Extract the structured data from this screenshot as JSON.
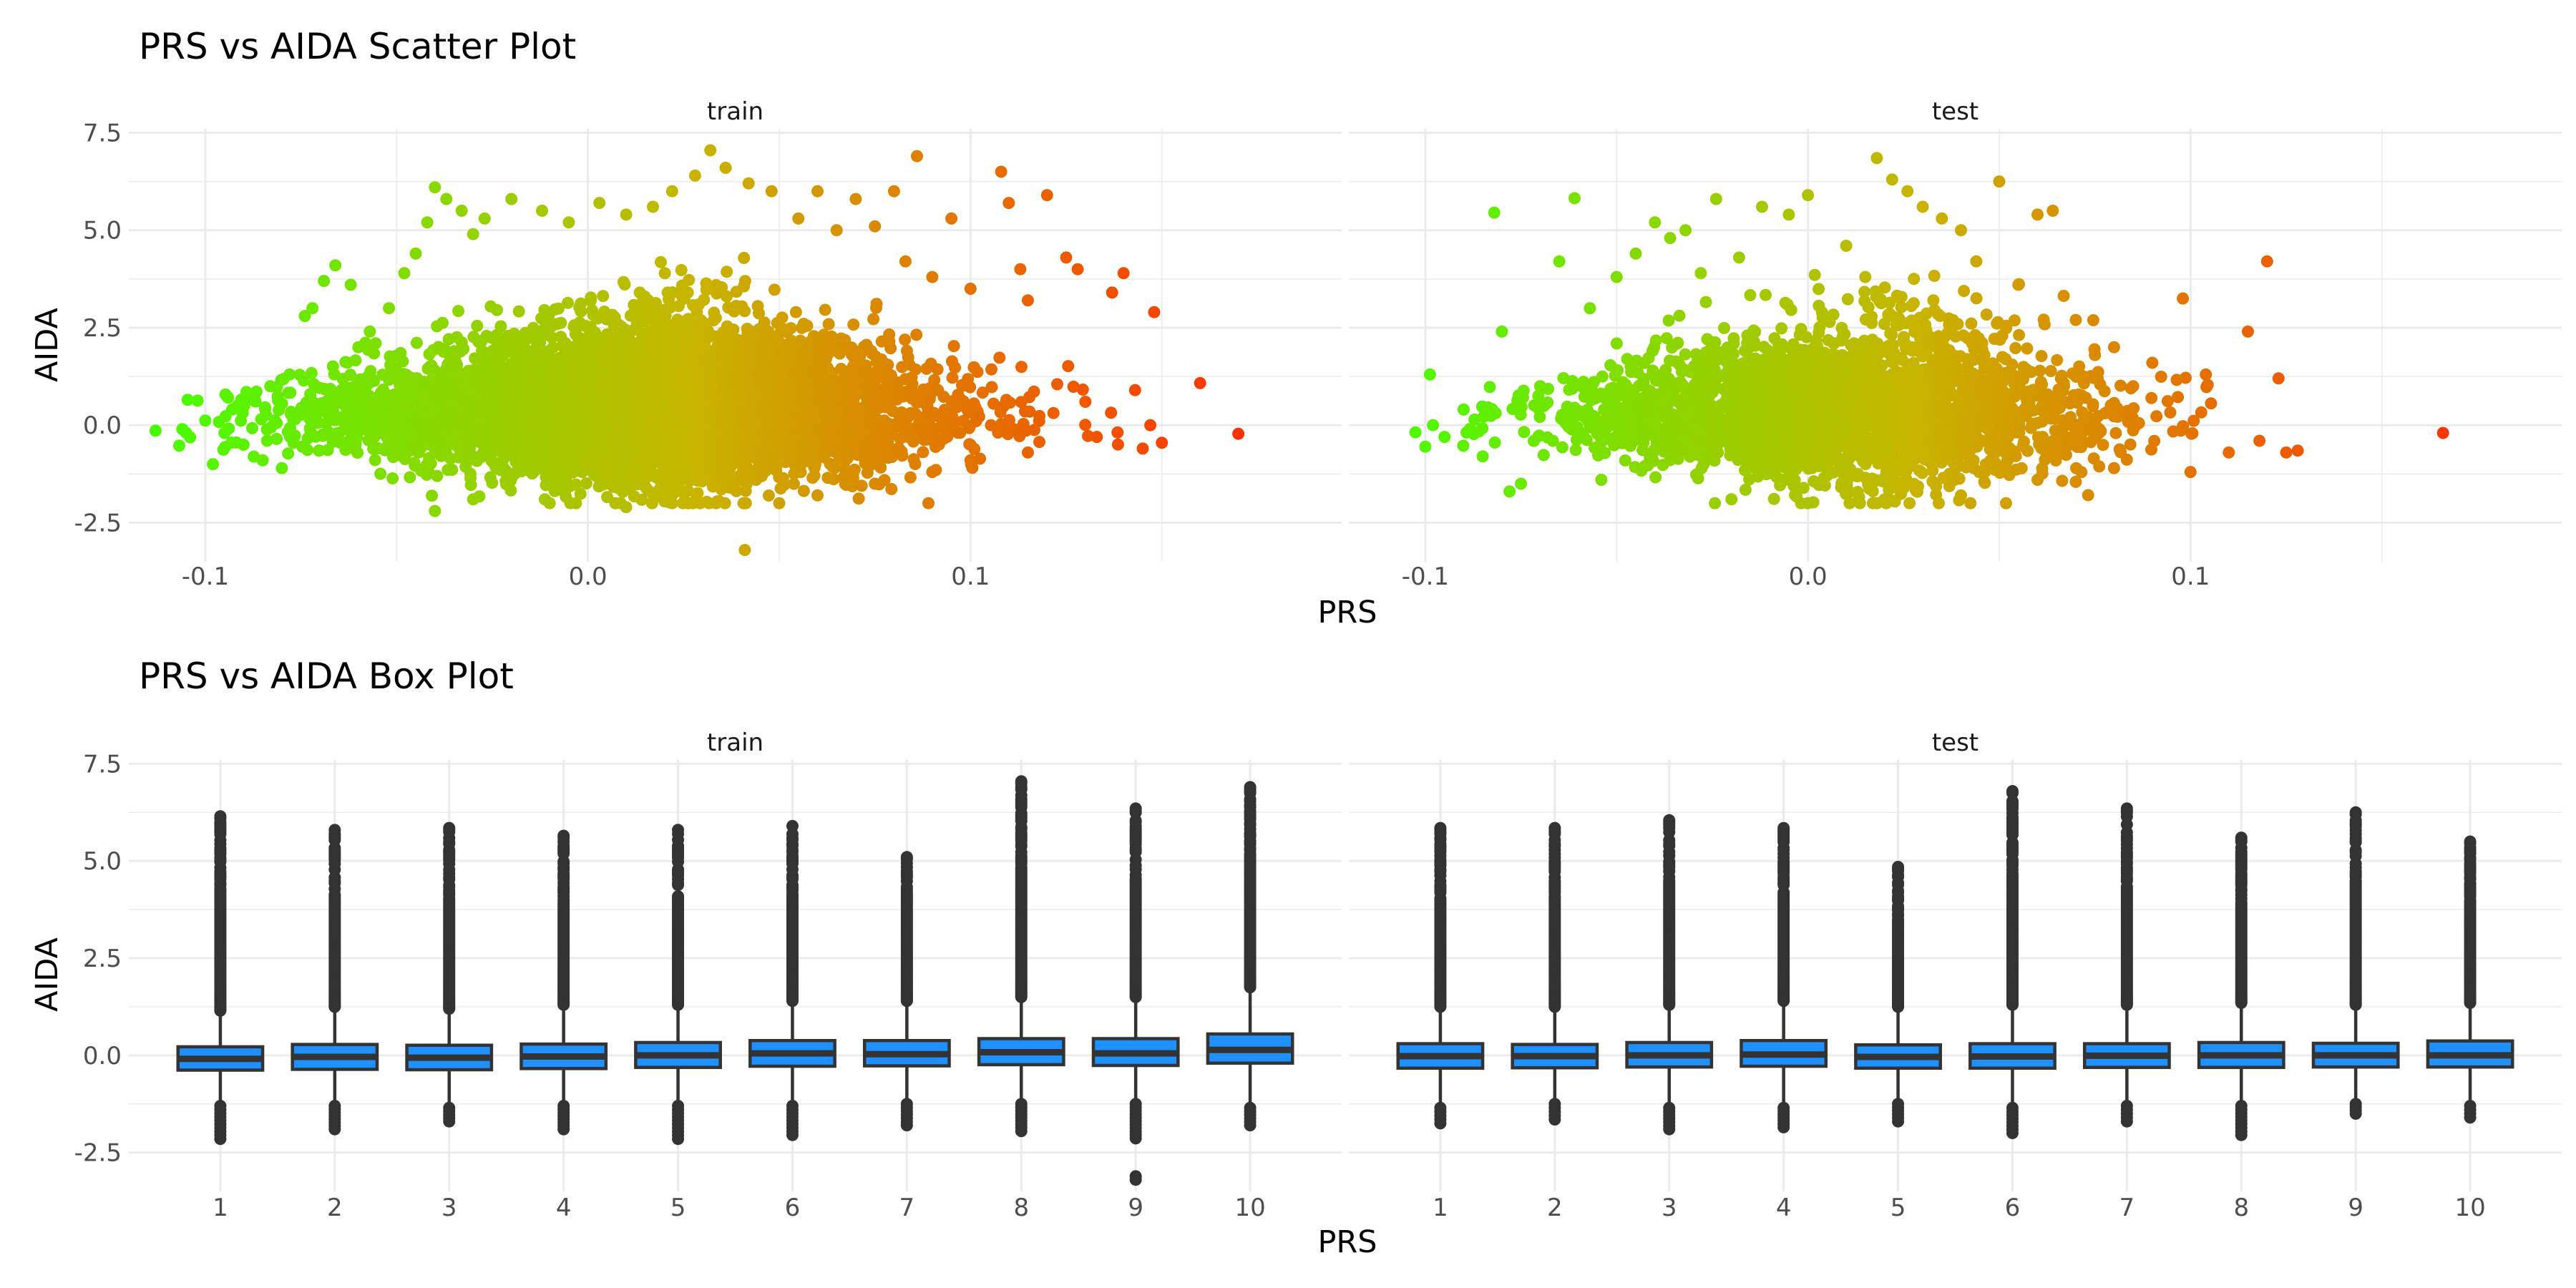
{
  "chart_data": [
    {
      "type": "scatter",
      "title": "PRS vs AIDA Scatter Plot",
      "xlabel": "PRS",
      "ylabel": "AIDA",
      "xlim": [
        -0.12,
        0.197
      ],
      "ylim": [
        -3.5,
        7.6
      ],
      "x_ticks": [
        "-0.1",
        "0.0",
        "0.1"
      ],
      "x_tick_values": [
        -0.1,
        0.0,
        0.1
      ],
      "y_ticks": [
        "-2.5",
        "0.0",
        "2.5",
        "5.0",
        "7.5"
      ],
      "y_tick_values": [
        -2.5,
        0.0,
        2.5,
        5.0,
        7.5
      ],
      "grid": true,
      "legend": "none",
      "color_gradient": {
        "low": "#44ff00",
        "mid": "#c8b400",
        "high": "#ff3000",
        "mapped_to": "PRS"
      },
      "panels": [
        {
          "name": "train",
          "n_approx": 20000,
          "points": [
            [
              -0.113,
              -0.14
            ],
            [
              -0.106,
              -0.1
            ],
            [
              -0.104,
              -0.31
            ],
            [
              -0.1,
              0.12
            ],
            [
              -0.098,
              -1.0
            ],
            [
              -0.095,
              -0.2
            ],
            [
              -0.093,
              0.4
            ],
            [
              -0.09,
              -0.5
            ],
            [
              -0.087,
              0.8
            ],
            [
              -0.085,
              -0.9
            ],
            [
              -0.083,
              1.0
            ],
            [
              -0.08,
              -1.1
            ],
            [
              -0.078,
              1.3
            ],
            [
              -0.074,
              2.8
            ],
            [
              -0.072,
              3.0
            ],
            [
              -0.069,
              3.7
            ],
            [
              -0.066,
              4.1
            ],
            [
              -0.062,
              3.6
            ],
            [
              -0.06,
              2.0
            ],
            [
              -0.057,
              2.4
            ],
            [
              -0.052,
              3.0
            ],
            [
              -0.048,
              3.9
            ],
            [
              -0.045,
              4.4
            ],
            [
              -0.042,
              5.2
            ],
            [
              -0.04,
              6.1
            ],
            [
              -0.037,
              5.8
            ],
            [
              -0.033,
              5.5
            ],
            [
              -0.03,
              4.9
            ],
            [
              -0.027,
              5.3
            ],
            [
              -0.02,
              5.8
            ],
            [
              -0.012,
              5.5
            ],
            [
              -0.005,
              5.2
            ],
            [
              0.003,
              5.7
            ],
            [
              0.01,
              5.4
            ],
            [
              0.017,
              5.6
            ],
            [
              0.022,
              6.0
            ],
            [
              0.028,
              6.4
            ],
            [
              0.032,
              7.05
            ],
            [
              0.036,
              6.6
            ],
            [
              0.042,
              6.2
            ],
            [
              0.048,
              6.0
            ],
            [
              0.055,
              5.3
            ],
            [
              0.06,
              6.0
            ],
            [
              0.065,
              5.0
            ],
            [
              0.07,
              5.8
            ],
            [
              0.075,
              5.1
            ],
            [
              0.08,
              6.0
            ],
            [
              0.083,
              4.2
            ],
            [
              0.086,
              6.9
            ],
            [
              0.09,
              3.8
            ],
            [
              0.095,
              5.3
            ],
            [
              0.1,
              3.5
            ],
            [
              0.108,
              6.5
            ],
            [
              0.11,
              5.7
            ],
            [
              0.113,
              4.0
            ],
            [
              0.115,
              3.2
            ],
            [
              0.12,
              5.9
            ],
            [
              0.125,
              4.3
            ],
            [
              0.128,
              4.0
            ],
            [
              0.13,
              0.6
            ],
            [
              0.133,
              -0.3
            ],
            [
              0.137,
              3.4
            ],
            [
              0.14,
              3.9
            ],
            [
              0.143,
              0.9
            ],
            [
              0.145,
              -0.6
            ],
            [
              0.147,
              0.0
            ],
            [
              0.148,
              2.9
            ],
            [
              0.15,
              -0.45
            ],
            [
              0.16,
              1.08
            ],
            [
              0.17,
              -0.22
            ],
            [
              -0.04,
              -2.2
            ],
            [
              -0.03,
              -1.9
            ],
            [
              -0.01,
              -2.0
            ],
            [
              0.01,
              -2.1
            ],
            [
              0.02,
              -1.95
            ],
            [
              0.041,
              -3.2
            ],
            [
              0.05,
              -2.0
            ],
            [
              0.06,
              -1.8
            ],
            [
              0.075,
              -1.5
            ],
            [
              0.09,
              -1.2
            ],
            [
              0.1,
              -0.9
            ],
            [
              0.115,
              -0.7
            ]
          ],
          "density_note": "dense cloud of points, bulk roughly PRS -0.08 to 0.12, AIDA -1.5 to 3"
        },
        {
          "name": "test",
          "n_approx": 6000,
          "points": [
            [
              -0.1,
              -0.55
            ],
            [
              -0.098,
              0.0
            ],
            [
              -0.095,
              -0.3
            ],
            [
              -0.09,
              0.4
            ],
            [
              -0.085,
              -0.8
            ],
            [
              -0.082,
              5.45
            ],
            [
              -0.08,
              2.4
            ],
            [
              -0.078,
              -1.7
            ],
            [
              -0.075,
              -1.5
            ],
            [
              -0.07,
              1.0
            ],
            [
              -0.065,
              4.2
            ],
            [
              -0.061,
              5.82
            ],
            [
              -0.057,
              3.0
            ],
            [
              -0.054,
              -1.4
            ],
            [
              -0.05,
              3.8
            ],
            [
              -0.045,
              4.4
            ],
            [
              -0.04,
              5.2
            ],
            [
              -0.036,
              4.8
            ],
            [
              -0.032,
              5.0
            ],
            [
              -0.028,
              3.9
            ],
            [
              -0.024,
              5.8
            ],
            [
              -0.018,
              4.3
            ],
            [
              -0.012,
              5.6
            ],
            [
              -0.005,
              5.4
            ],
            [
              0.0,
              5.9
            ],
            [
              0.01,
              4.6
            ],
            [
              0.015,
              3.8
            ],
            [
              0.018,
              6.85
            ],
            [
              0.022,
              6.3
            ],
            [
              0.026,
              6.0
            ],
            [
              0.03,
              5.6
            ],
            [
              0.035,
              5.3
            ],
            [
              0.04,
              5.0
            ],
            [
              0.044,
              4.2
            ],
            [
              0.05,
              6.25
            ],
            [
              0.055,
              3.6
            ],
            [
              0.06,
              5.4
            ],
            [
              0.064,
              5.5
            ],
            [
              0.07,
              2.7
            ],
            [
              0.075,
              1.8
            ],
            [
              0.08,
              2.0
            ],
            [
              0.085,
              1.0
            ],
            [
              0.09,
              1.6
            ],
            [
              0.098,
              3.25
            ],
            [
              0.1,
              -1.2
            ],
            [
              0.104,
              1.3
            ],
            [
              0.11,
              -0.7
            ],
            [
              0.115,
              2.4
            ],
            [
              0.118,
              -0.4
            ],
            [
              0.12,
              4.2
            ],
            [
              0.123,
              1.2
            ],
            [
              0.125,
              -0.7
            ],
            [
              0.128,
              -0.65
            ],
            [
              0.166,
              -0.2
            ],
            [
              -0.02,
              -1.9
            ],
            [
              0.0,
              -2.0
            ],
            [
              0.02,
              -1.9
            ],
            [
              0.04,
              -1.8
            ],
            [
              0.06,
              -1.4
            ],
            [
              0.08,
              -1.1
            ]
          ],
          "density_note": "dense cloud of points, bulk roughly PRS -0.07 to 0.1, AIDA -1.5 to 2.5"
        }
      ]
    },
    {
      "type": "box",
      "title": "PRS vs AIDA Box Plot",
      "xlabel": "PRS",
      "ylabel": "AIDA",
      "categories": [
        "1",
        "2",
        "3",
        "4",
        "5",
        "6",
        "7",
        "8",
        "9",
        "10"
      ],
      "ylim": [
        -3.5,
        7.6
      ],
      "y_ticks": [
        "-2.5",
        "0.0",
        "2.5",
        "5.0",
        "7.5"
      ],
      "y_tick_values": [
        -2.5,
        0.0,
        2.5,
        5.0,
        7.5
      ],
      "grid": true,
      "box_color": "#1e90ff",
      "panels": [
        {
          "name": "train",
          "boxes": [
            {
              "q1": -0.38,
              "median": -0.09,
              "q3": 0.22,
              "wlow": -1.25,
              "whigh": 1.1,
              "max": 6.15,
              "min": -2.15
            },
            {
              "q1": -0.36,
              "median": -0.04,
              "q3": 0.28,
              "wlow": -1.25,
              "whigh": 1.2,
              "max": 5.85,
              "min": -1.9
            },
            {
              "q1": -0.37,
              "median": -0.06,
              "q3": 0.26,
              "wlow": -1.3,
              "whigh": 1.15,
              "max": 5.85,
              "min": -1.7
            },
            {
              "q1": -0.34,
              "median": -0.03,
              "q3": 0.29,
              "wlow": -1.25,
              "whigh": 1.25,
              "max": 5.7,
              "min": -1.9
            },
            {
              "q1": -0.31,
              "median": 0.0,
              "q3": 0.33,
              "wlow": -1.25,
              "whigh": 1.25,
              "max": 5.8,
              "min": -2.15
            },
            {
              "q1": -0.28,
              "median": 0.05,
              "q3": 0.38,
              "wlow": -1.25,
              "whigh": 1.35,
              "max": 5.9,
              "min": -2.05
            },
            {
              "q1": -0.27,
              "median": 0.03,
              "q3": 0.38,
              "wlow": -1.2,
              "whigh": 1.35,
              "max": 5.1,
              "min": -1.8
            },
            {
              "q1": -0.24,
              "median": 0.08,
              "q3": 0.43,
              "wlow": -1.2,
              "whigh": 1.45,
              "max": 7.05,
              "min": -1.95
            },
            {
              "q1": -0.26,
              "median": 0.05,
              "q3": 0.43,
              "wlow": -1.2,
              "whigh": 1.45,
              "max": 6.35,
              "min": -3.2
            },
            {
              "q1": -0.2,
              "median": 0.14,
              "q3": 0.55,
              "wlow": -1.3,
              "whigh": 1.7,
              "max": 6.9,
              "min": -1.8
            }
          ]
        },
        {
          "name": "test",
          "boxes": [
            {
              "q1": -0.33,
              "median": -0.02,
              "q3": 0.3,
              "wlow": -1.3,
              "whigh": 1.2,
              "max": 5.85,
              "min": -1.75
            },
            {
              "q1": -0.32,
              "median": -0.02,
              "q3": 0.28,
              "wlow": -1.2,
              "whigh": 1.2,
              "max": 5.85,
              "min": -1.65
            },
            {
              "q1": -0.3,
              "median": 0.0,
              "q3": 0.33,
              "wlow": -1.3,
              "whigh": 1.25,
              "max": 6.1,
              "min": -1.9
            },
            {
              "q1": -0.28,
              "median": 0.02,
              "q3": 0.38,
              "wlow": -1.3,
              "whigh": 1.35,
              "max": 5.9,
              "min": -1.85
            },
            {
              "q1": -0.33,
              "median": -0.04,
              "q3": 0.27,
              "wlow": -1.2,
              "whigh": 1.2,
              "max": 4.9,
              "min": -1.7
            },
            {
              "q1": -0.33,
              "median": -0.03,
              "q3": 0.3,
              "wlow": -1.3,
              "whigh": 1.25,
              "max": 6.85,
              "min": -2.0
            },
            {
              "q1": -0.31,
              "median": -0.01,
              "q3": 0.3,
              "wlow": -1.25,
              "whigh": 1.25,
              "max": 6.35,
              "min": -1.7
            },
            {
              "q1": -0.31,
              "median": 0.0,
              "q3": 0.33,
              "wlow": -1.25,
              "whigh": 1.3,
              "max": 5.6,
              "min": -2.05
            },
            {
              "q1": -0.3,
              "median": 0.0,
              "q3": 0.31,
              "wlow": -1.2,
              "whigh": 1.25,
              "max": 6.25,
              "min": -1.5
            },
            {
              "q1": -0.3,
              "median": 0.0,
              "q3": 0.37,
              "wlow": -1.25,
              "whigh": 1.3,
              "max": 5.5,
              "min": -1.6
            }
          ]
        }
      ]
    }
  ]
}
